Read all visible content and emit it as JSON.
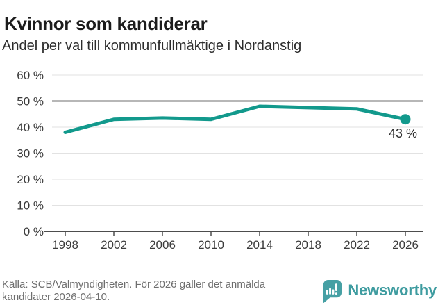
{
  "header": {
    "title": "Kvinnor som kandiderar",
    "subtitle": "Andel per val till kommunfullmäktige i Nordanstig"
  },
  "chart_data": {
    "type": "line",
    "title": "Kvinnor som kandiderar",
    "subtitle": "Andel per val till kommunfullmäktige i Nordanstig",
    "categories": [
      "1998",
      "2002",
      "2006",
      "2010",
      "2014",
      "2018",
      "2022",
      "2026"
    ],
    "values": [
      38,
      43,
      43.5,
      43,
      48,
      47.5,
      47,
      43
    ],
    "end_label": "43 %",
    "y_tick_values": [
      0,
      10,
      20,
      30,
      40,
      50,
      60
    ],
    "y_tick_labels": [
      "0 %",
      "10 %",
      "20 %",
      "30 %",
      "40 %",
      "50 %",
      "60 %"
    ],
    "ylim": [
      0,
      60
    ],
    "reference_line": 50,
    "grid": true,
    "legend": false,
    "line_color": "#12998c",
    "grid_color": "#e2e2e2",
    "reference_line_color": "#6f6f6f",
    "axis_color": "#4d4d4d",
    "tick_label_color": "#3b3b3b",
    "end_label_color": "#2d2d2d"
  },
  "footer": {
    "source_line1": "Källa: SCB/Valmyndigheten. För 2026 gäller det anmälda",
    "source_line2": "kandidater 2026-04-10.",
    "brand": "Newsworthy",
    "brand_color": "#3f9ca0",
    "brand_icon_color": "#46a0a4"
  }
}
